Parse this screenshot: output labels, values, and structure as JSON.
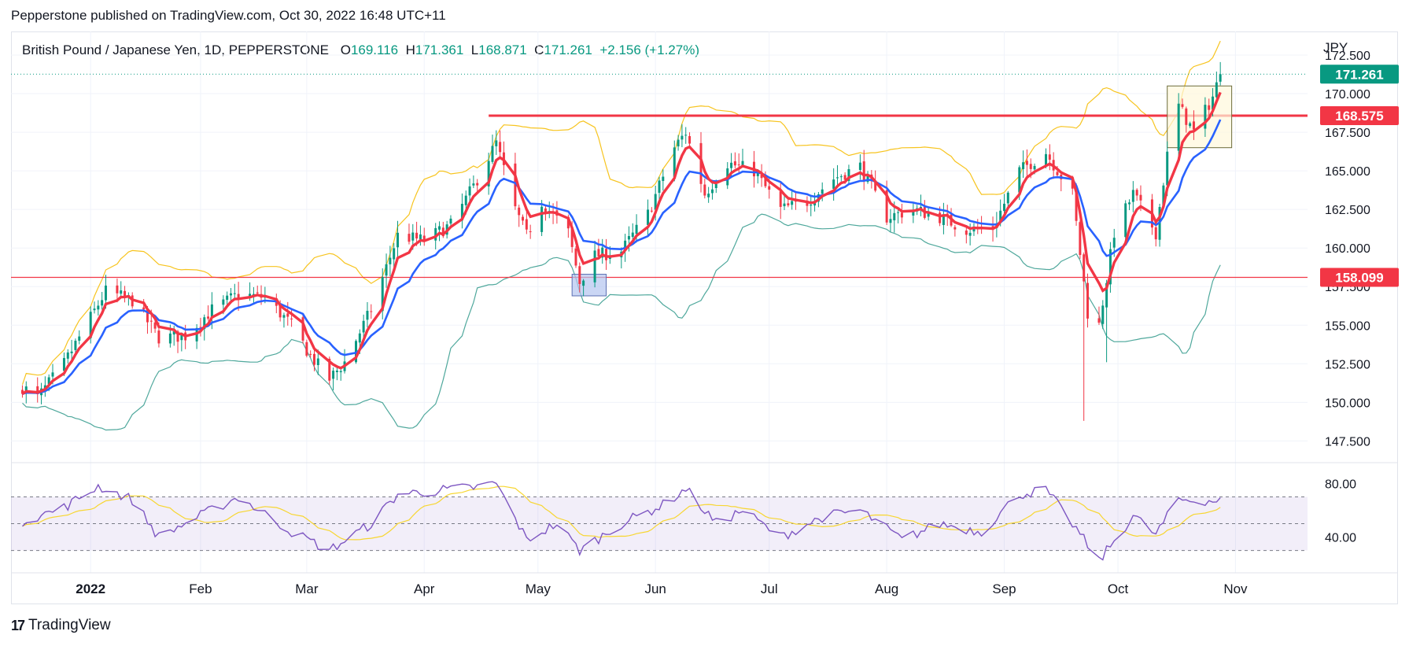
{
  "publisher": "Pepperstone published on TradingView.com, Oct 30, 2022 16:48 UTC+11",
  "legend": {
    "symbol": "British Pound / Japanese Yen, 1D, PEPPERSTONE",
    "o_label": "O",
    "o_value": "169.116",
    "h_label": "H",
    "h_value": "171.361",
    "l_label": "L",
    "l_value": "168.871",
    "c_label": "C",
    "c_value": "171.261",
    "change": "+2.156 (+1.27%)"
  },
  "brand": "TradingView",
  "colors": {
    "up": "#089981",
    "down": "#f23645",
    "ema_fast": "#f23645",
    "ema_slow": "#2962ff",
    "bb_upper": "#f7c41f",
    "bb_lower": "#4fa89c",
    "rsi": "#7e57c2",
    "rsi_ma": "#f7d631",
    "line_red": "#f23645"
  },
  "chart_data": [
    {
      "type": "candlestick",
      "currency": "JPY",
      "ylim": [
        146.5,
        172.5
      ],
      "y_ticks": [
        "147.500",
        "150.000",
        "152.500",
        "155.000",
        "157.500",
        "160.000",
        "162.500",
        "165.000",
        "167.500",
        "170.000",
        "172.500"
      ],
      "x_ticks": [
        "2022",
        "Feb",
        "Mar",
        "Apr",
        "May",
        "Jun",
        "Jul",
        "Aug",
        "Sep",
        "Oct",
        "Nov"
      ],
      "price_tags": [
        {
          "value": 171.261,
          "label": "171.261",
          "color": "#089981"
        },
        {
          "value": 168.575,
          "label": "168.575",
          "color": "#f23645"
        },
        {
          "value": 158.099,
          "label": "158.099",
          "color": "#f23645"
        }
      ],
      "horizontal_lines": [
        {
          "value": 168.575,
          "color": "#f23645"
        },
        {
          "value": 158.099,
          "color": "#f23645"
        }
      ],
      "anchors": [
        {
          "date": "Dec 16",
          "close": 151.0
        },
        {
          "date": "Dec 20",
          "close": 150.3
        },
        {
          "date": "Dec 27",
          "close": 152.5
        },
        {
          "date": "Jan 3",
          "close": 155.5
        },
        {
          "date": "Jan 7",
          "close": 157.2
        },
        {
          "date": "Jan 14",
          "close": 156.6
        },
        {
          "date": "Jan 21",
          "close": 154.2
        },
        {
          "date": "Jan 28",
          "close": 154.3
        },
        {
          "date": "Feb 4",
          "close": 156.0
        },
        {
          "date": "Feb 11",
          "close": 157.0
        },
        {
          "date": "Feb 18",
          "close": 156.8
        },
        {
          "date": "Feb 25",
          "close": 155.0
        },
        {
          "date": "Mar 2",
          "close": 153.0
        },
        {
          "date": "Mar 7",
          "close": 151.5
        },
        {
          "date": "Mar 11",
          "close": 152.6
        },
        {
          "date": "Mar 18",
          "close": 156.0
        },
        {
          "date": "Mar 25",
          "close": 160.8
        },
        {
          "date": "Apr 1",
          "close": 160.5
        },
        {
          "date": "Apr 8",
          "close": 161.5
        },
        {
          "date": "Apr 14",
          "close": 164.0
        },
        {
          "date": "Apr 20",
          "close": 166.8
        },
        {
          "date": "Apr 25",
          "close": 162.5
        },
        {
          "date": "Apr 28",
          "close": 160.8
        },
        {
          "date": "May 2",
          "close": 163.0
        },
        {
          "date": "May 9",
          "close": 161.0
        },
        {
          "date": "May 12",
          "close": 157.8
        },
        {
          "date": "May 16",
          "close": 159.5
        },
        {
          "date": "May 23",
          "close": 159.8
        },
        {
          "date": "May 30",
          "close": 162.2
        },
        {
          "date": "Jun 6",
          "close": 166.5
        },
        {
          "date": "Jun 9",
          "close": 167.5
        },
        {
          "date": "Jun 14",
          "close": 163.5
        },
        {
          "date": "Jun 20",
          "close": 165.5
        },
        {
          "date": "Jun 27",
          "close": 165.0
        },
        {
          "date": "Jul 4",
          "close": 162.5
        },
        {
          "date": "Jul 11",
          "close": 163.0
        },
        {
          "date": "Jul 18",
          "close": 164.5
        },
        {
          "date": "Jul 25",
          "close": 165.3
        },
        {
          "date": "Aug 1",
          "close": 162.0
        },
        {
          "date": "Aug 8",
          "close": 162.5
        },
        {
          "date": "Aug 15",
          "close": 162.0
        },
        {
          "date": "Aug 22",
          "close": 161.2
        },
        {
          "date": "Aug 29",
          "close": 161.3
        },
        {
          "date": "Sep 5",
          "close": 165.0
        },
        {
          "date": "Sep 12",
          "close": 166.2
        },
        {
          "date": "Sep 19",
          "close": 163.5
        },
        {
          "date": "Sep 23",
          "close": 155.8
        },
        {
          "date": "Sep 26",
          "close": 155.0
        },
        {
          "date": "Sep 30",
          "close": 161.0
        },
        {
          "date": "Oct 5",
          "close": 163.5
        },
        {
          "date": "Oct 11",
          "close": 161.0
        },
        {
          "date": "Oct 14",
          "close": 166.0
        },
        {
          "date": "Oct 17",
          "close": 169.2
        },
        {
          "date": "Oct 21",
          "close": 167.5
        },
        {
          "date": "Oct 26",
          "close": 169.8
        },
        {
          "date": "Oct 28",
          "close": 171.261
        }
      ],
      "highlight_boxes": [
        {
          "from": "Oct 14",
          "to": "Oct 31",
          "low": 166.5,
          "high": 170.5,
          "fill": "#fff8dc",
          "stroke": "#6b6b3a"
        },
        {
          "from": "May 10",
          "to": "May 19",
          "low": 156.9,
          "high": 158.3,
          "fill": "#b3c5f0",
          "stroke": "#5b6fb2"
        }
      ]
    },
    {
      "type": "line",
      "indicator": "RSI",
      "ylim": [
        18,
        92
      ],
      "y_ticks": [
        "40.00",
        "80.00"
      ],
      "band_levels": [
        30,
        50,
        70
      ],
      "anchors": [
        {
          "date": "Dec 16",
          "value": 52
        },
        {
          "date": "Dec 27",
          "value": 62
        },
        {
          "date": "Jan 5",
          "value": 78
        },
        {
          "date": "Jan 14",
          "value": 68
        },
        {
          "date": "Jan 21",
          "value": 40
        },
        {
          "date": "Feb 1",
          "value": 56
        },
        {
          "date": "Feb 11",
          "value": 70
        },
        {
          "date": "Feb 25",
          "value": 44
        },
        {
          "date": "Mar 7",
          "value": 30
        },
        {
          "date": "Mar 18",
          "value": 50
        },
        {
          "date": "Mar 25",
          "value": 72
        },
        {
          "date": "Apr 14",
          "value": 77
        },
        {
          "date": "Apr 20",
          "value": 80
        },
        {
          "date": "Apr 28",
          "value": 38
        },
        {
          "date": "May 6",
          "value": 50
        },
        {
          "date": "May 12",
          "value": 30
        },
        {
          "date": "May 23",
          "value": 50
        },
        {
          "date": "Jun 3",
          "value": 64
        },
        {
          "date": "Jun 9",
          "value": 76
        },
        {
          "date": "Jun 17",
          "value": 50
        },
        {
          "date": "Jun 24",
          "value": 60
        },
        {
          "date": "Jul 4",
          "value": 40
        },
        {
          "date": "Jul 15",
          "value": 55
        },
        {
          "date": "Jul 25",
          "value": 60
        },
        {
          "date": "Aug 5",
          "value": 38
        },
        {
          "date": "Aug 15",
          "value": 50
        },
        {
          "date": "Aug 26",
          "value": 44
        },
        {
          "date": "Sep 5",
          "value": 72
        },
        {
          "date": "Sep 12",
          "value": 75
        },
        {
          "date": "Sep 19",
          "value": 50
        },
        {
          "date": "Sep 26",
          "value": 22
        },
        {
          "date": "Oct 5",
          "value": 56
        },
        {
          "date": "Oct 11",
          "value": 42
        },
        {
          "date": "Oct 17",
          "value": 68
        },
        {
          "date": "Oct 28",
          "value": 67
        }
      ]
    }
  ]
}
